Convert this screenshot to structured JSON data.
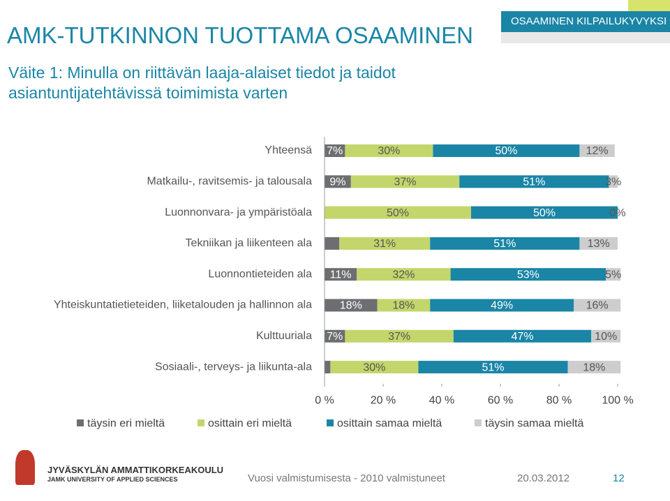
{
  "slide": {
    "banner": "OSAAMINEN KILPAILUKYVYKSI",
    "title": "AMK-TUTKINNON TUOTTAMA OSAAMINEN",
    "subtitle": "Väite 1: Minulla on riittävän laaja-alaiset tiedot ja taidot asiantuntijatehtävissä toimimista varten",
    "logo_name": "JYVÄSKYLÄN AMMATTIKORKEAKOULU",
    "logo_sub": "JAMK UNIVERSITY OF APPLIED SCIENCES",
    "footer": "Vuosi valmistumisesta - 2010 valmistuneet",
    "date": "20.03.2012",
    "page": "12"
  },
  "chart_data": {
    "type": "stacked-bar-horizontal",
    "categories": [
      "Yhteensä",
      "Matkailu-, ravitsemis- ja talousala",
      "Luonnonvara- ja ympäristöala",
      "Tekniikan ja liikenteen ala",
      "Luonnontieteiden ala",
      "Yhteiskuntatietieteiden, liiketalouden ja hallinnon ala",
      "Kulttuuriala",
      "Sosiaali-, terveys- ja liikunta-ala"
    ],
    "series": [
      {
        "name": "täysin eri mieltä",
        "color": "#6d6e71",
        "values": [
          7,
          9,
          0,
          5,
          11,
          18,
          7,
          2
        ],
        "value_labels": [
          "7%",
          "9%",
          null,
          null,
          "11%",
          "18%",
          "7%",
          null
        ]
      },
      {
        "name": "osittain eri mieltä",
        "color": "#c3d66b",
        "values": [
          30,
          37,
          50,
          31,
          32,
          18,
          37,
          30
        ],
        "value_labels": [
          "30%",
          "37%",
          "50%",
          "31%",
          "32%",
          "18%",
          "37%",
          "30%"
        ]
      },
      {
        "name": "osittain samaa mieltä",
        "color": "#1b85a6",
        "values": [
          50,
          51,
          50,
          51,
          53,
          49,
          47,
          51
        ],
        "value_labels": [
          "50%",
          "51%",
          "50%",
          "51%",
          "53%",
          "49%",
          "47%",
          "51%"
        ]
      },
      {
        "name": "täysin samaa mieltä",
        "color": "#cdcdcd",
        "values": [
          12,
          3,
          0,
          13,
          5,
          16,
          10,
          18
        ],
        "value_labels": [
          "12%",
          "3%",
          "0%",
          "13%",
          "5%",
          "16%",
          "10%",
          "18%"
        ]
      }
    ],
    "xlim": [
      0,
      100
    ],
    "xticks": [
      {
        "value": 0,
        "label": "0 %"
      },
      {
        "value": 20,
        "label": "20 %"
      },
      {
        "value": 40,
        "label": "40 %"
      },
      {
        "value": 60,
        "label": "60 %"
      },
      {
        "value": 80,
        "label": "80 %"
      },
      {
        "value": 100,
        "label": "100 %"
      }
    ],
    "legend": "bottom"
  }
}
